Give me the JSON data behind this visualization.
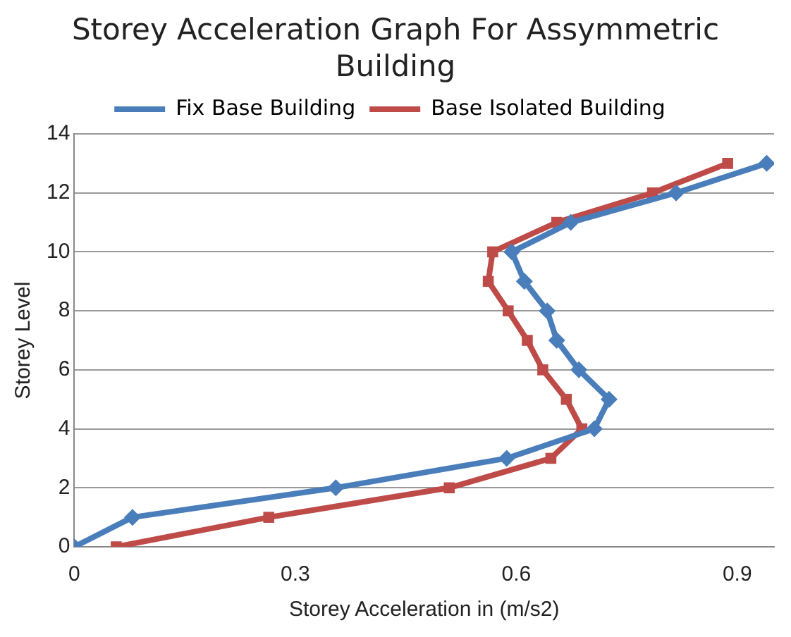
{
  "chart_data": {
    "type": "line",
    "title": "Storey Acceleration Graph For Assymmetric Building",
    "xlabel": "Storey Acceleration in (m/s2)",
    "ylabel": "Storey Level",
    "xlim": [
      0,
      0.95
    ],
    "xticks": [
      0,
      0.3,
      0.6,
      0.9
    ],
    "ylim": [
      0,
      14
    ],
    "yticks": [
      0,
      2,
      4,
      6,
      8,
      10,
      12,
      14
    ],
    "grid": "y",
    "legend": "top",
    "series": [
      {
        "name": "Fix Base Building",
        "color": "#4a7ebb",
        "marker": "diamond",
        "x": [
          0,
          0.079,
          0.355,
          0.587,
          0.706,
          0.726,
          0.685,
          0.655,
          0.642,
          0.611,
          0.594,
          0.674,
          0.817,
          0.94
        ],
        "values": [
          0,
          1,
          2,
          3,
          4,
          5,
          6,
          7,
          8,
          9,
          10,
          11,
          12,
          13
        ]
      },
      {
        "name": "Base Isolated Building",
        "color": "#be4b48",
        "marker": "square",
        "x": [
          0.057,
          0.264,
          0.509,
          0.647,
          0.689,
          0.668,
          0.636,
          0.615,
          0.589,
          0.562,
          0.568,
          0.655,
          0.785,
          0.887
        ],
        "values": [
          0,
          1,
          2,
          3,
          4,
          5,
          6,
          7,
          8,
          9,
          10,
          11,
          12,
          13
        ]
      }
    ]
  }
}
